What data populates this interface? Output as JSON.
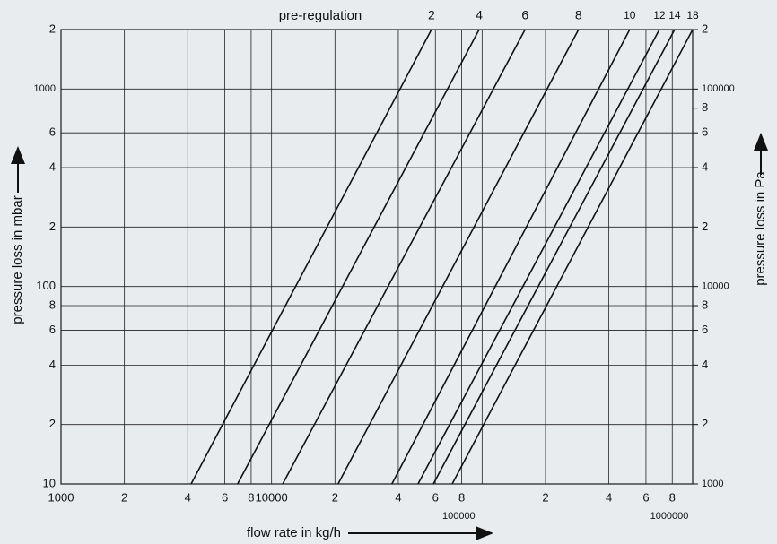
{
  "chart_data": {
    "type": "line",
    "title": "pre-regulation",
    "x_label": "flow rate in kg/h",
    "y_label": "pressure loss in mbar",
    "y2_label": "pressure loss in Pa",
    "xscale": "log",
    "yscale": "log",
    "grid": true,
    "xlim": [
      1000,
      1000000
    ],
    "ylim": [
      10,
      2000
    ],
    "y2lim": [
      1000,
      200000
    ],
    "xticks": [
      1000,
      {
        "value": 2000,
        "label": "2"
      },
      {
        "value": 4000,
        "label": "4"
      },
      {
        "value": 6000,
        "label": "6"
      },
      {
        "value": 8000,
        "label": "8"
      },
      10000,
      {
        "value": 20000,
        "label": "2"
      },
      {
        "value": 40000,
        "label": "4"
      },
      {
        "value": 60000,
        "label": "6"
      },
      {
        "value": 80000,
        "label": "8"
      },
      100000,
      {
        "value": 200000,
        "label": "2"
      },
      {
        "value": 400000,
        "label": "4"
      },
      {
        "value": 600000,
        "label": "6"
      },
      {
        "value": 800000,
        "label": "8"
      },
      1000000
    ],
    "yticks": [
      10,
      {
        "value": 20,
        "label": "2"
      },
      {
        "value": 40,
        "label": "4"
      },
      {
        "value": 60,
        "label": "6"
      },
      {
        "value": 80,
        "label": "8"
      },
      100,
      {
        "value": 200,
        "label": "2"
      },
      {
        "value": 400,
        "label": "4"
      },
      {
        "value": 600,
        "label": "6"
      },
      1000,
      {
        "value": 2000,
        "label": "2"
      }
    ],
    "y2ticks": [
      1000,
      {
        "value": 2000,
        "label": "2"
      },
      {
        "value": 4000,
        "label": "4"
      },
      {
        "value": 6000,
        "label": "6"
      },
      {
        "value": 8000,
        "label": "8"
      },
      10000,
      {
        "value": 20000,
        "label": "2"
      },
      {
        "value": 40000,
        "label": "4"
      },
      {
        "value": 60000,
        "label": "6"
      },
      {
        "value": 80000,
        "label": "8"
      },
      100000,
      {
        "value": 200000,
        "label": "2"
      }
    ],
    "series": [
      {
        "name": "2",
        "color": "#111111",
        "x": [
          4150,
          57500
        ],
        "values": [
          10,
          2000
        ]
      },
      {
        "name": "4",
        "color": "#111111",
        "x": [
          6900,
          96800
        ],
        "values": [
          10,
          2000
        ]
      },
      {
        "name": "6",
        "color": "#111111",
        "x": [
          11300,
          160000
        ],
        "values": [
          10,
          2000
        ]
      },
      {
        "name": "8",
        "color": "#111111",
        "x": [
          20700,
          287000
        ],
        "values": [
          10,
          2000
        ]
      },
      {
        "name": "10",
        "color": "#111111",
        "x": [
          37300,
          502000
        ],
        "values": [
          10,
          2000
        ]
      },
      {
        "name": "12",
        "color": "#111111",
        "x": [
          49600,
          695000
        ],
        "values": [
          10,
          2000
        ]
      },
      {
        "name": "14",
        "color": "#111111",
        "x": [
          58700,
          821000
        ],
        "values": [
          10,
          2000
        ]
      },
      {
        "name": "18",
        "color": "#111111",
        "x": [
          72100,
          1000000
        ],
        "values": [
          10,
          2000
        ]
      }
    ]
  }
}
